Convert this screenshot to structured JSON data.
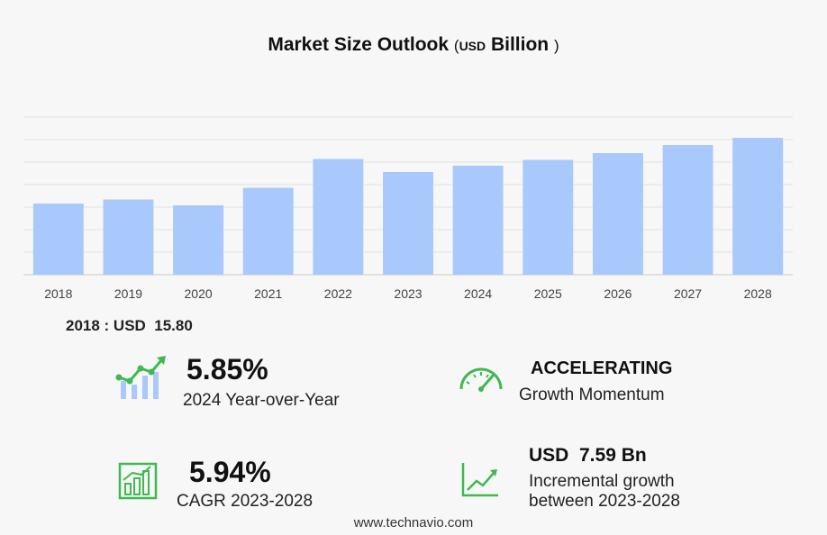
{
  "title": {
    "main": "Market Size Outlook",
    "open_paren": "(",
    "unit_small": "USD",
    "unit": "Billion",
    "close_paren": ")"
  },
  "chart_data": {
    "type": "bar",
    "categories": [
      "2018",
      "2019",
      "2020",
      "2021",
      "2022",
      "2023",
      "2024",
      "2025",
      "2026",
      "2027",
      "2028"
    ],
    "values": [
      15.8,
      16.7,
      15.4,
      19.3,
      25.7,
      22.8,
      24.2,
      25.5,
      27.0,
      28.8,
      30.4
    ],
    "title": "Market Size Outlook (USD Billion)",
    "xlabel": "",
    "ylabel": "",
    "ylim": [
      0,
      35
    ],
    "grid": true,
    "bar_color": "#a9c8fb"
  },
  "first_value_label": "2018 : USD  15.80",
  "stats": {
    "yoy": {
      "value": "5.85%",
      "label": "2024 Year-over-Year"
    },
    "momentum": {
      "value": "ACCELERATING",
      "label": "Growth Momentum"
    },
    "cagr": {
      "value": "5.94%",
      "label": "CAGR 2023-2028"
    },
    "incremental": {
      "value": "USD  7.59 Bn",
      "label1": "Incremental growth",
      "label2": "between 2023-2028"
    }
  },
  "icons": {
    "yoy": "bar-chart-rising-icon",
    "momentum": "speedometer-icon",
    "cagr": "bar-chart-icon",
    "incremental": "line-chart-icon"
  },
  "colors": {
    "accent": "#3fb950",
    "bar": "#a9c8fb",
    "icon_bar": "#a9c8fb"
  },
  "footer": "www.technavio.com"
}
